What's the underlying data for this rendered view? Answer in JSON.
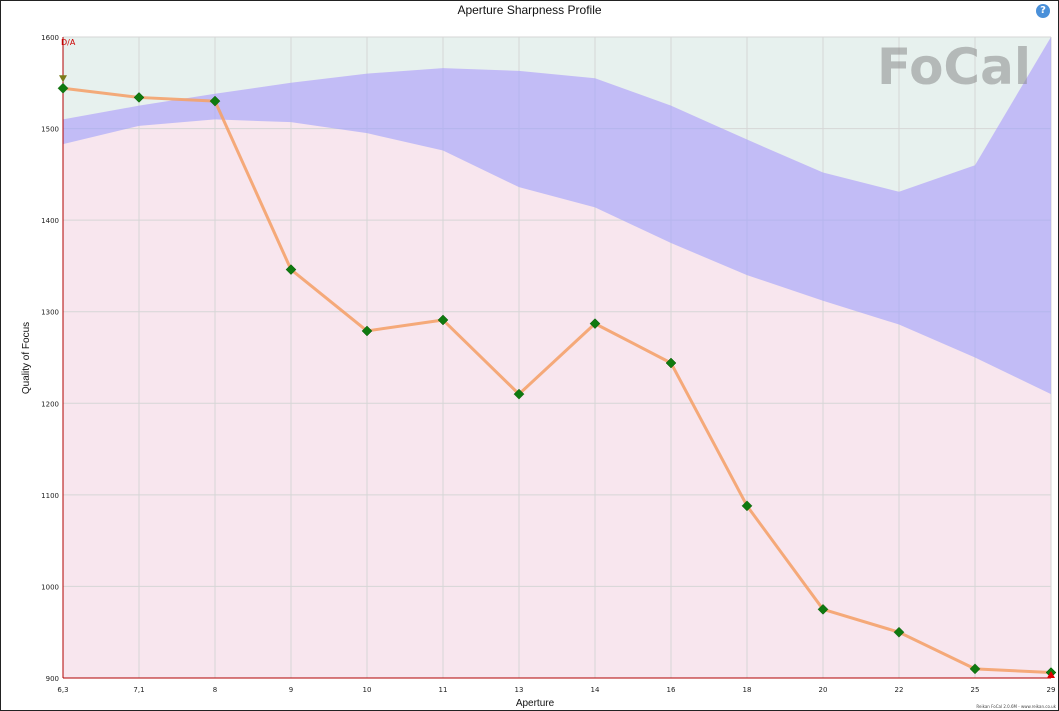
{
  "header": {
    "help_icon": "question-circle-icon",
    "help_glyph": "?"
  },
  "logo": {
    "text": "FoCal"
  },
  "chart_data": {
    "type": "line",
    "title": "Aperture Sharpness Profile",
    "xlabel": "Aperture",
    "ylabel": "Quality of Focus",
    "categories": [
      "6,3",
      "7,1",
      "8",
      "9",
      "10",
      "11",
      "13",
      "14",
      "16",
      "18",
      "20",
      "22",
      "25",
      "29"
    ],
    "ylim": [
      900,
      1600
    ],
    "yticks": [
      900,
      1000,
      1100,
      1200,
      1300,
      1400,
      1500,
      1600
    ],
    "grid": true,
    "series": [
      {
        "values": [
          1544,
          1534,
          1530,
          1346,
          1279,
          1291,
          1210,
          1287,
          1244,
          1088,
          975,
          950,
          910,
          906
        ],
        "line_color": "#f4a26b",
        "marker_color": "#0f7a0f"
      }
    ],
    "reference_band": {
      "upper": [
        1510,
        1525,
        1538,
        1550,
        1560,
        1566,
        1563,
        1555,
        1525,
        1488,
        1452,
        1431,
        1460,
        1600
      ],
      "lower": [
        1483,
        1503,
        1510,
        1507,
        1495,
        1476,
        1436,
        1414,
        1375,
        1340,
        1312,
        1286,
        1250,
        1210
      ],
      "color": "#9fa0fb"
    },
    "annotations": [
      {
        "label": "D/A",
        "category": "6,3",
        "color": "#cc0000"
      }
    ],
    "colors": {
      "upper_region": "#e7f1ee",
      "lower_region": "#f8e6ee",
      "axis_line": "#b00000"
    }
  },
  "footer": {
    "text": "Reikan FoCal 2.0.6M - www.reikan.co.uk"
  }
}
